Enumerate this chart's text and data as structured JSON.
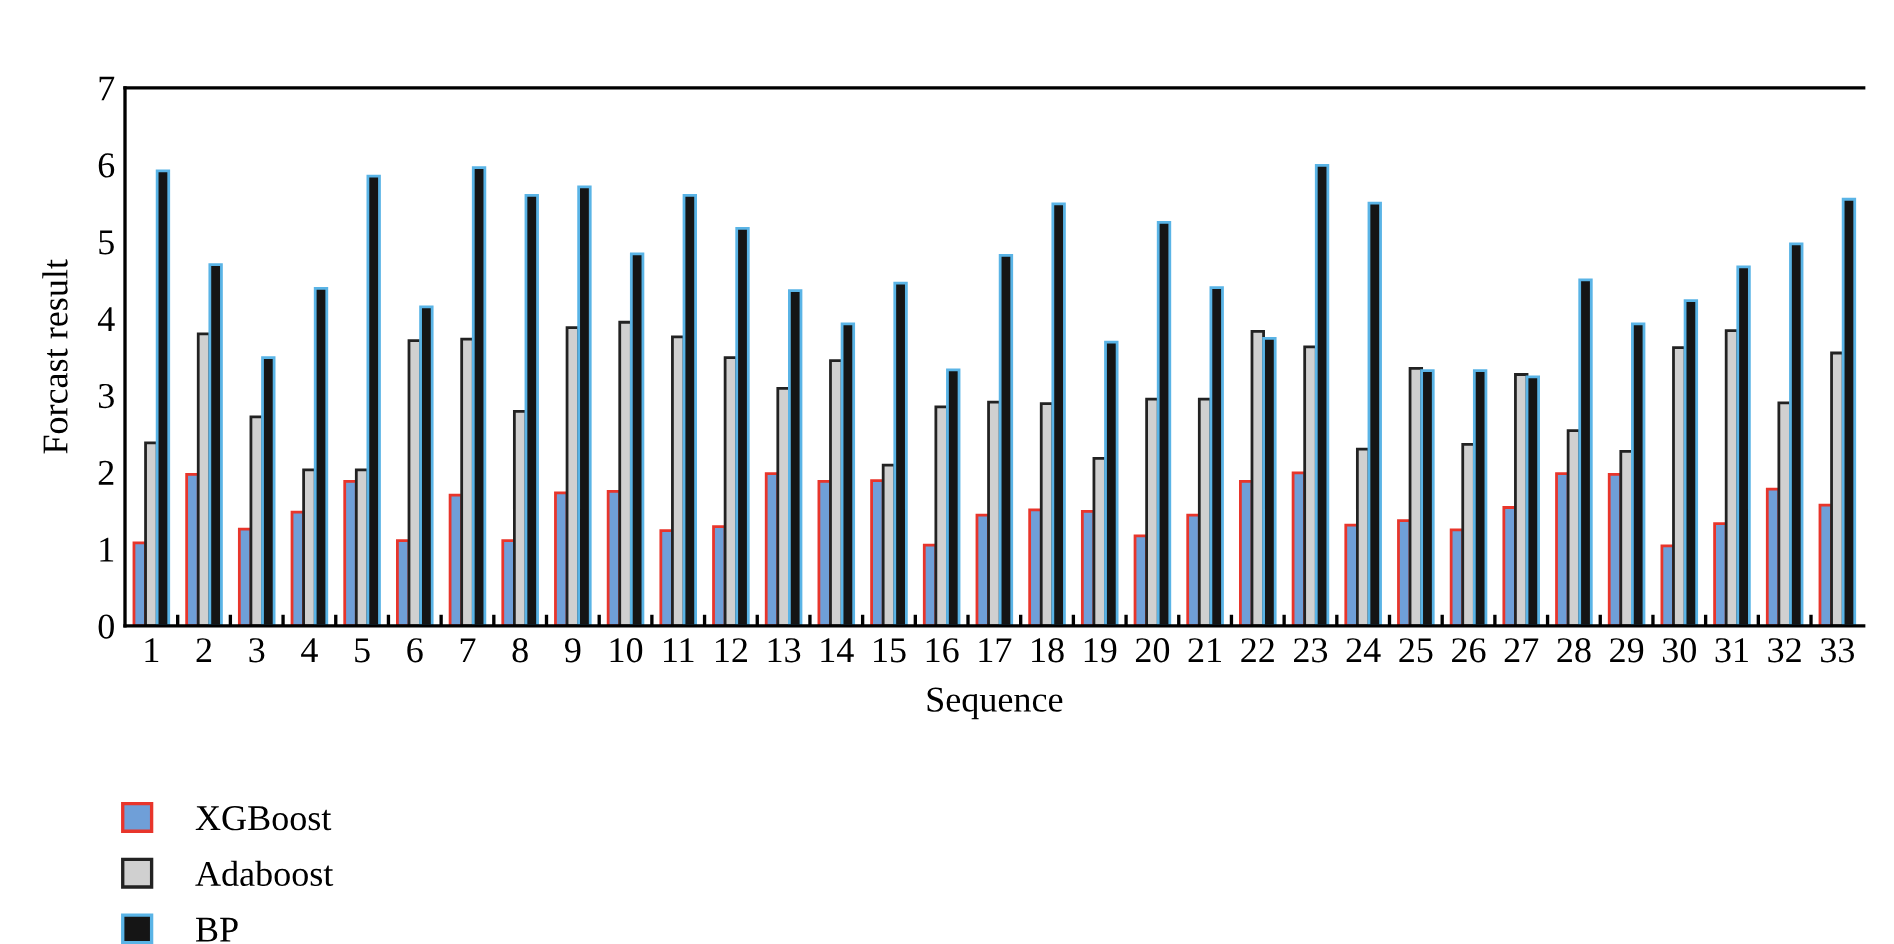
{
  "chart_data": {
    "type": "bar",
    "xlabel": "Sequence",
    "ylabel": "Forcast result",
    "categories": [
      "1",
      "2",
      "3",
      "4",
      "5",
      "6",
      "7",
      "8",
      "9",
      "10",
      "11",
      "12",
      "13",
      "14",
      "15",
      "16",
      "17",
      "18",
      "19",
      "20",
      "21",
      "22",
      "23",
      "24",
      "25",
      "26",
      "27",
      "28",
      "29",
      "30",
      "31",
      "32",
      "33"
    ],
    "series": [
      {
        "name": "XGBoost",
        "color": "#6f9fd8",
        "values": [
          1.08,
          1.97,
          1.26,
          1.48,
          1.88,
          1.11,
          1.7,
          1.11,
          1.73,
          1.75,
          1.24,
          1.29,
          1.98,
          1.88,
          1.89,
          1.05,
          1.44,
          1.51,
          1.49,
          1.17,
          1.44,
          1.88,
          1.99,
          1.31,
          1.37,
          1.25,
          1.54,
          1.98,
          1.97,
          1.04,
          1.33,
          1.78,
          1.57
        ]
      },
      {
        "name": "Adaboost",
        "color": "#d0d0d0",
        "values": [
          2.38,
          3.8,
          2.72,
          2.03,
          2.03,
          3.71,
          3.73,
          2.79,
          3.88,
          3.95,
          3.76,
          3.49,
          3.09,
          3.45,
          2.09,
          2.85,
          2.91,
          2.89,
          2.18,
          2.95,
          2.95,
          3.83,
          3.63,
          2.3,
          3.35,
          2.36,
          3.27,
          2.54,
          2.27,
          3.62,
          3.84,
          2.9,
          3.55
        ]
      },
      {
        "name": "BP",
        "color": "#151515",
        "values": [
          5.92,
          4.7,
          3.49,
          4.39,
          5.85,
          4.15,
          5.96,
          5.6,
          5.71,
          4.84,
          5.6,
          5.17,
          4.36,
          3.93,
          4.46,
          3.33,
          4.82,
          5.49,
          3.69,
          5.25,
          4.4,
          3.74,
          5.99,
          5.5,
          3.32,
          3.32,
          3.24,
          4.5,
          3.93,
          4.23,
          4.67,
          4.97,
          5.55
        ]
      }
    ],
    "ylim": [
      0,
      7
    ],
    "yticks": [
      0,
      1,
      2,
      3,
      4,
      5,
      6,
      7
    ],
    "grid": false,
    "legend": "bottom left"
  }
}
